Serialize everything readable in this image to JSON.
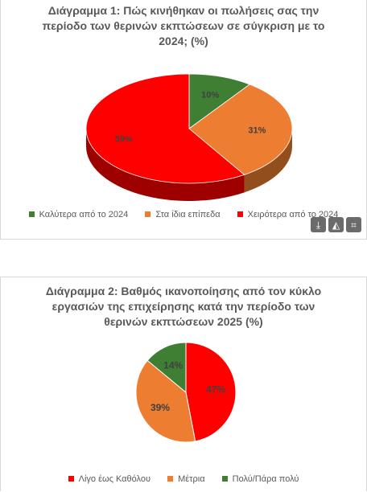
{
  "charts": [
    {
      "title_lines": [
        "Διάγραμμα 1: Πώς κινήθηκαν οι πωλήσεις σας την",
        "περίοδο των θερινών εκπτώσεων σε σύγκριση με το",
        "2024; (%)"
      ],
      "legend": [
        {
          "label": "Καλύτερα από το 2024",
          "color": "#3f7f33"
        },
        {
          "label": "Στα ίδια επίπεδα",
          "color": "#ed7d31"
        },
        {
          "label": "Χειρότερα από το 2024",
          "color": "#ff0000"
        }
      ]
    },
    {
      "title_lines": [
        "Διάγραμμα 2: Βαθμός ικανοποίησης από τον κύκλο",
        "εργασιών της επιχείρησης κατά την περίοδο των",
        "θερινών εκπτώσεων 2025 (%)"
      ],
      "legend": [
        {
          "label": "Λίγο έως Καθόλου",
          "color": "#ff0000"
        },
        {
          "label": "Μέτρια",
          "color": "#ed7d31"
        },
        {
          "label": "Πολύ/Πάρα πολύ",
          "color": "#3f7f33"
        }
      ]
    }
  ],
  "chart_data": [
    {
      "type": "pie",
      "title": "Διάγραμμα 1: Πώς κινήθηκαν οι πωλήσεις σας την περίοδο των θερινών εκπτώσεων σε σύγκριση με το 2024; (%)",
      "categories": [
        "Καλύτερα από το 2024",
        "Στα ίδια επίπεδα",
        "Χειρότερα από το 2024"
      ],
      "values": [
        10,
        31,
        59
      ],
      "value_labels": [
        "10%",
        "31%",
        "59%"
      ],
      "colors": [
        "#3f7f33",
        "#ed7d31",
        "#ff0000"
      ],
      "style": "3d",
      "legend": "bottom"
    },
    {
      "type": "pie",
      "title": "Διάγραμμα 2: Βαθμός ικανοποίησης από τον κύκλο εργασιών της επιχείρησης κατά την περίοδο των θερινών εκπτώσεων 2025 (%)",
      "categories": [
        "Λίγο έως Καθόλου",
        "Μέτρια",
        "Πολύ/Πάρα πολύ"
      ],
      "values": [
        47,
        39,
        14
      ],
      "value_labels": [
        "47%",
        "39%",
        "14%"
      ],
      "colors": [
        "#ff0000",
        "#ed7d31",
        "#3f7f33"
      ],
      "style": "2d",
      "legend": "bottom"
    }
  ],
  "toolbar": {
    "download_icon": "download-icon",
    "image_icon": "image-add-icon",
    "crop_icon": "crop-icon",
    "download_glyph": "⤓",
    "image_glyph": "◭",
    "crop_glyph": "⌗"
  }
}
